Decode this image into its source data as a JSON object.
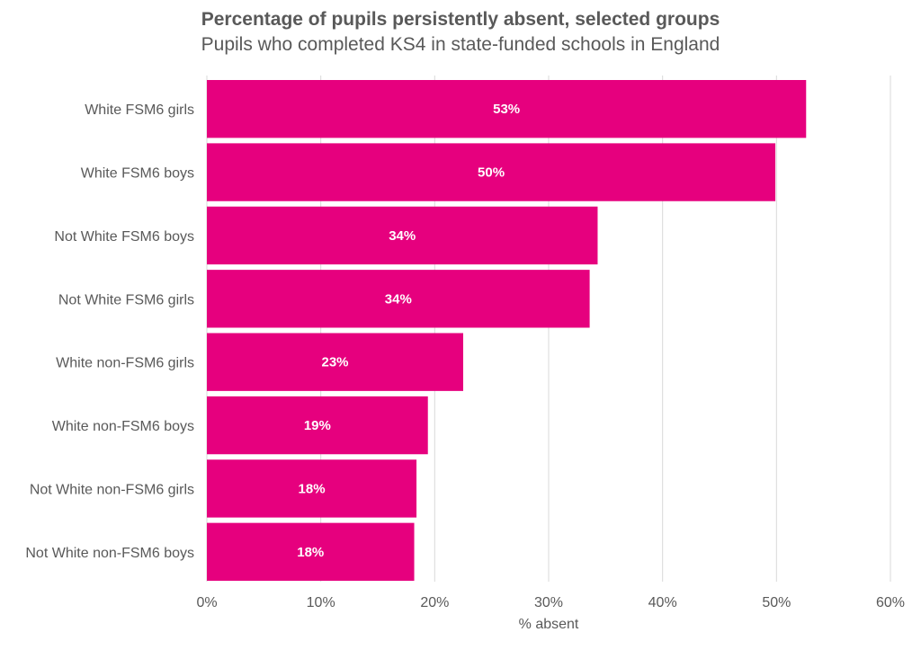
{
  "chart_data": {
    "type": "bar",
    "orientation": "horizontal",
    "title": "Percentage of pupils persistently absent, selected groups",
    "subtitle": "Pupils who completed KS4 in state-funded schools in England",
    "xlabel": "% absent",
    "ylabel": "",
    "xlim": [
      0,
      60
    ],
    "ticks": [
      0,
      10,
      20,
      30,
      40,
      50,
      60
    ],
    "tick_labels": [
      "0%",
      "10%",
      "20%",
      "30%",
      "40%",
      "50%",
      "60%"
    ],
    "grid": true,
    "bar_color": "#e6007e",
    "categories": [
      "White FSM6 girls",
      "White FSM6 boys",
      "Not White FSM6 boys",
      "Not White FSM6 girls",
      "White non-FSM6 girls",
      "White non-FSM6 boys",
      "Not White non-FSM6 girls",
      "Not White non-FSM6 boys"
    ],
    "values": [
      52.6,
      49.9,
      34.3,
      33.6,
      22.5,
      19.4,
      18.4,
      18.2
    ],
    "data_labels": [
      "53%",
      "50%",
      "34%",
      "34%",
      "23%",
      "19%",
      "18%",
      "18%"
    ]
  }
}
